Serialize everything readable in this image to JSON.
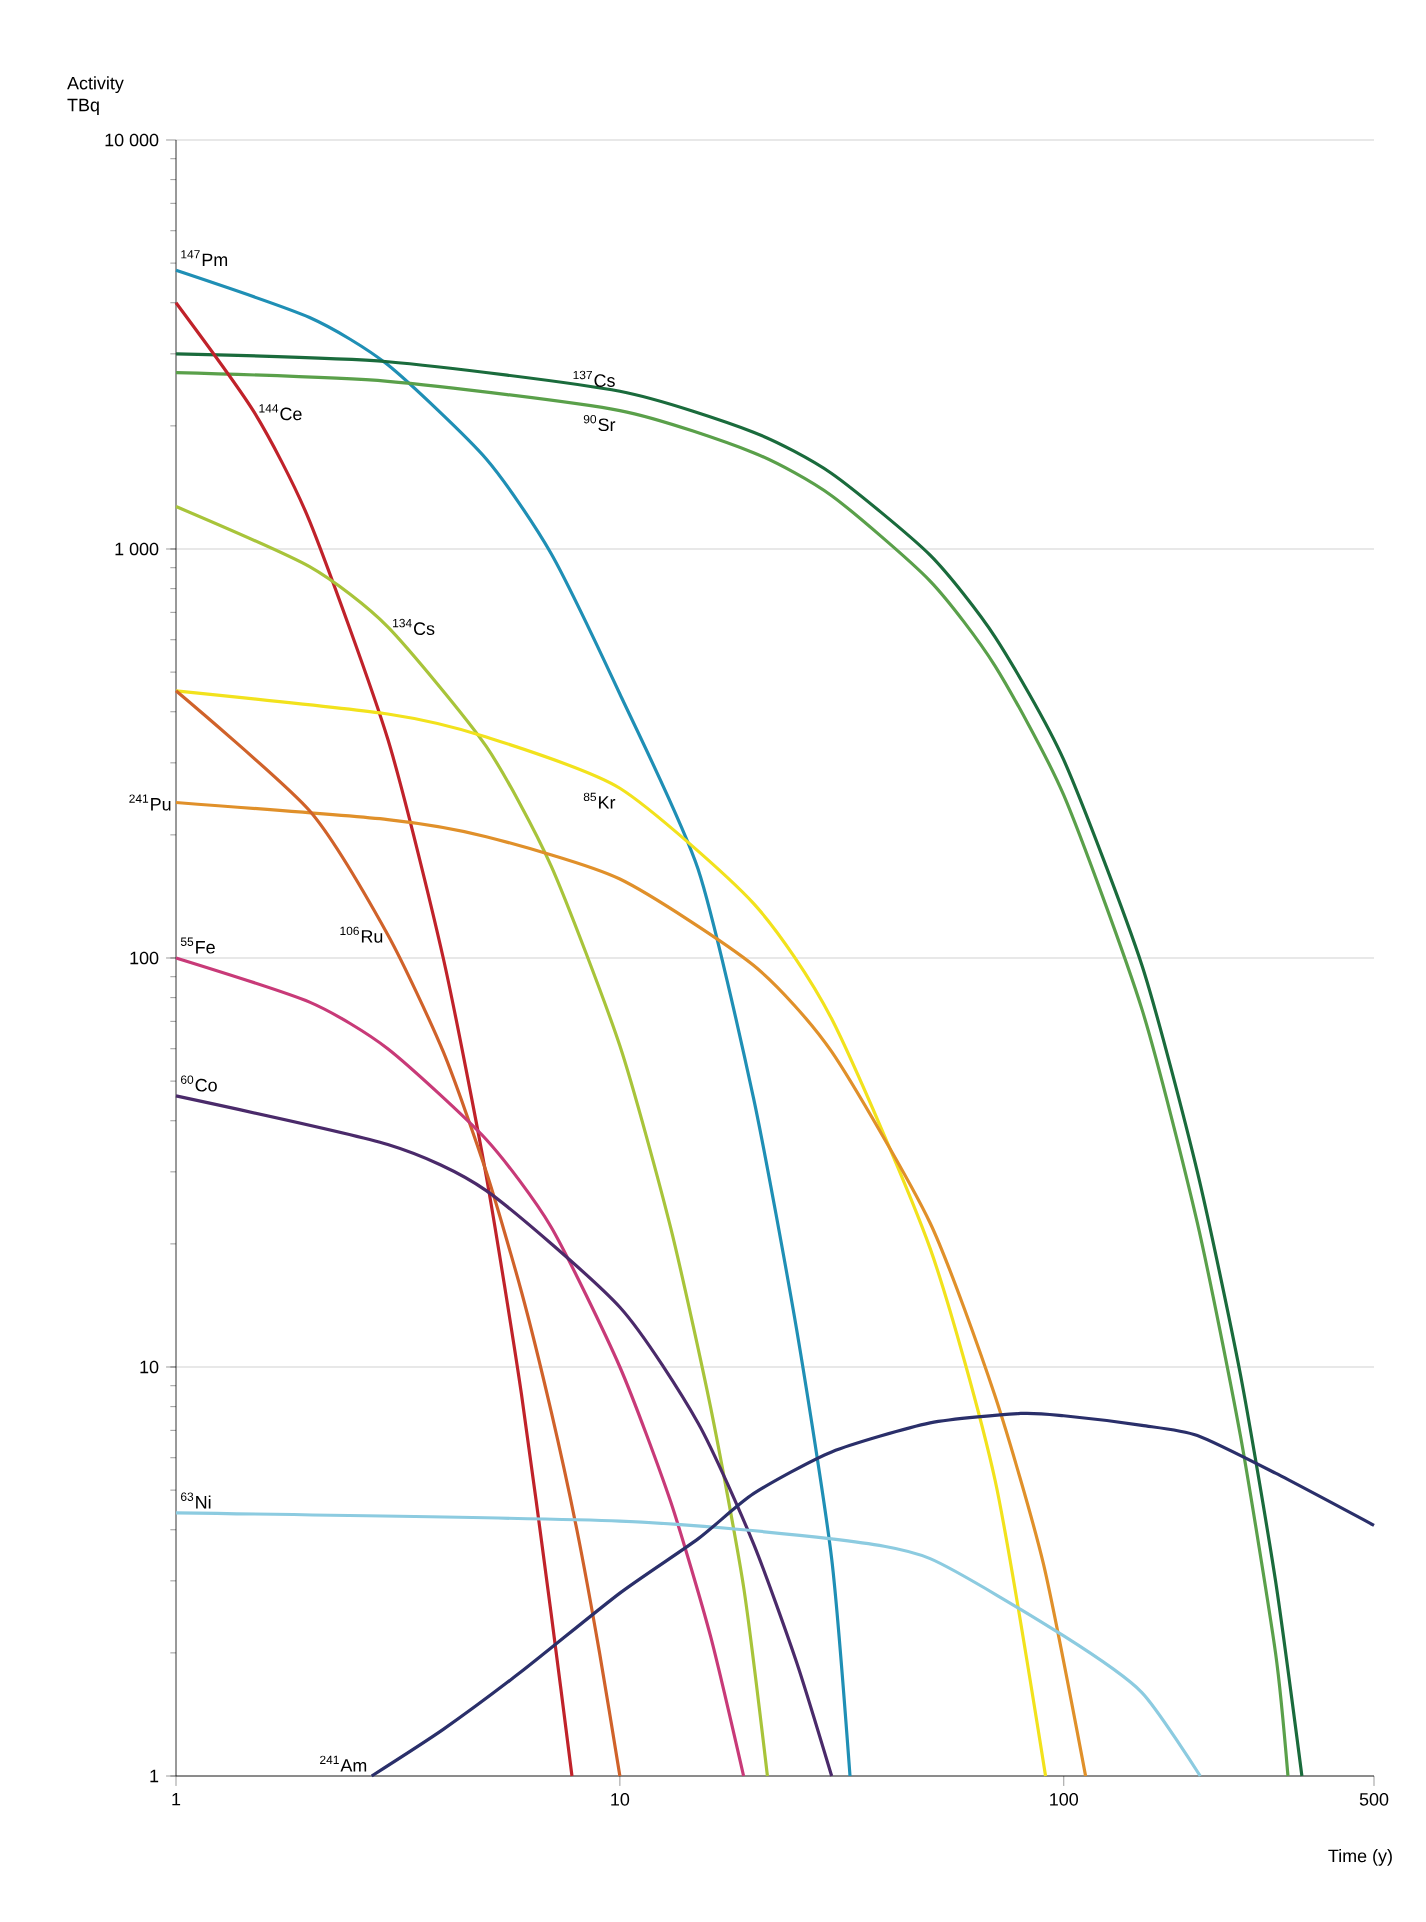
{
  "chart_data": {
    "type": "line",
    "xlabel": "Time (y)",
    "ylabel": "Activity TBq",
    "log": "xy",
    "grid": "y",
    "xlim": [
      1,
      500
    ],
    "ylim": [
      1,
      10000
    ],
    "xticks": [
      1,
      10,
      100,
      500
    ],
    "yticks": [
      1,
      10,
      100,
      {
        "value": 1000,
        "label": "1 000"
      },
      {
        "value": 10000,
        "label": "10 000"
      }
    ],
    "series": [
      {
        "name": "$^{147}$Pm",
        "color": "#1f8fb5",
        "x": [
          1,
          2,
          3,
          5,
          7,
          10,
          15,
          20,
          25,
          30,
          33
        ],
        "values": [
          4800,
          3680,
          2820,
          1660,
          975,
          442,
          165,
          45.5,
          12.4,
          3.4,
          1
        ]
      },
      {
        "name": "$^{137}$Cs",
        "color": "#1a6b3c",
        "x": [
          1,
          3,
          10,
          20,
          30,
          50,
          70,
          100,
          150,
          200,
          250,
          300,
          344
        ],
        "values": [
          3000,
          2870,
          2430,
          1930,
          1530,
          966,
          610,
          305,
          96,
          30,
          9.6,
          3,
          1
        ]
      },
      {
        "name": "$^{90}$Sr",
        "color": "#5aa04a",
        "x": [
          1,
          3,
          10,
          20,
          30,
          50,
          70,
          100,
          150,
          200,
          250,
          300,
          320
        ],
        "values": [
          2700,
          2570,
          2180,
          1720,
          1350,
          835,
          518,
          250,
          75,
          22.5,
          6.8,
          2,
          1
        ]
      },
      {
        "name": "$^{144}$Ce",
        "color": "#c0222a",
        "x": [
          1,
          1.5,
          2,
          3,
          4,
          5,
          6,
          7,
          7.8
        ],
        "values": [
          4000,
          2160,
          1170,
          343,
          100,
          29.3,
          8.6,
          2.5,
          1
        ]
      },
      {
        "name": "$^{134}$Cs",
        "color": "#a8c43a",
        "x": [
          1,
          2,
          3,
          5,
          7,
          10,
          13,
          16,
          19,
          21.5
        ],
        "values": [
          1270,
          905,
          645,
          329,
          168,
          61,
          22,
          8,
          2.9,
          1
        ]
      },
      {
        "name": "$^{85}$Kr",
        "color": "#f2e21c",
        "x": [
          1,
          3,
          5,
          10,
          20,
          30,
          50,
          70,
          91
        ],
        "values": [
          450,
          395,
          347,
          260,
          136,
          71,
          19.5,
          5.3,
          1
        ]
      },
      {
        "name": "$^{241}$Pu",
        "color": "#e0902a",
        "x": [
          1,
          3,
          5,
          10,
          20,
          30,
          50,
          70,
          90,
          112
        ],
        "values": [
          240,
          218,
          198,
          156,
          96,
          59,
          22.5,
          8.5,
          3.3,
          1
        ]
      },
      {
        "name": "$^{106}$Ru",
        "color": "#d0622a",
        "x": [
          1,
          2,
          3,
          4,
          5,
          6,
          7,
          8,
          9,
          10
        ],
        "values": [
          450,
          229,
          114,
          59,
          30,
          15.3,
          7.8,
          4,
          2,
          1
        ]
      },
      {
        "name": "$^{55}$Fe",
        "color": "#c83a78",
        "x": [
          1,
          2,
          3,
          5,
          7,
          10,
          13,
          16,
          19
        ],
        "values": [
          100,
          78,
          60,
          36,
          22,
          10,
          4.7,
          2.2,
          1
        ]
      },
      {
        "name": "$^{60}$Co",
        "color": "#4a2a6a",
        "x": [
          1,
          3,
          5,
          10,
          15,
          20,
          25,
          30
        ],
        "values": [
          46,
          35,
          27,
          14,
          7.3,
          3.7,
          1.9,
          1
        ]
      },
      {
        "name": "$^{63}$Ni",
        "color": "#8ccbe0",
        "x": [
          1,
          10,
          30,
          50,
          100,
          150,
          203
        ],
        "values": [
          4.4,
          4.2,
          3.8,
          3.4,
          2.2,
          1.6,
          1
        ]
      },
      {
        "name": "$^{241}$Am",
        "color": "#2a2f6a",
        "x": [
          2.76,
          4,
          6,
          10,
          15,
          20,
          30,
          50,
          80,
          100,
          150,
          200,
          300,
          500
        ],
        "values": [
          1,
          1.3,
          1.8,
          2.8,
          3.8,
          4.9,
          6.2,
          7.3,
          7.7,
          7.6,
          7.2,
          6.8,
          5.5,
          4.1
        ]
      }
    ]
  }
}
